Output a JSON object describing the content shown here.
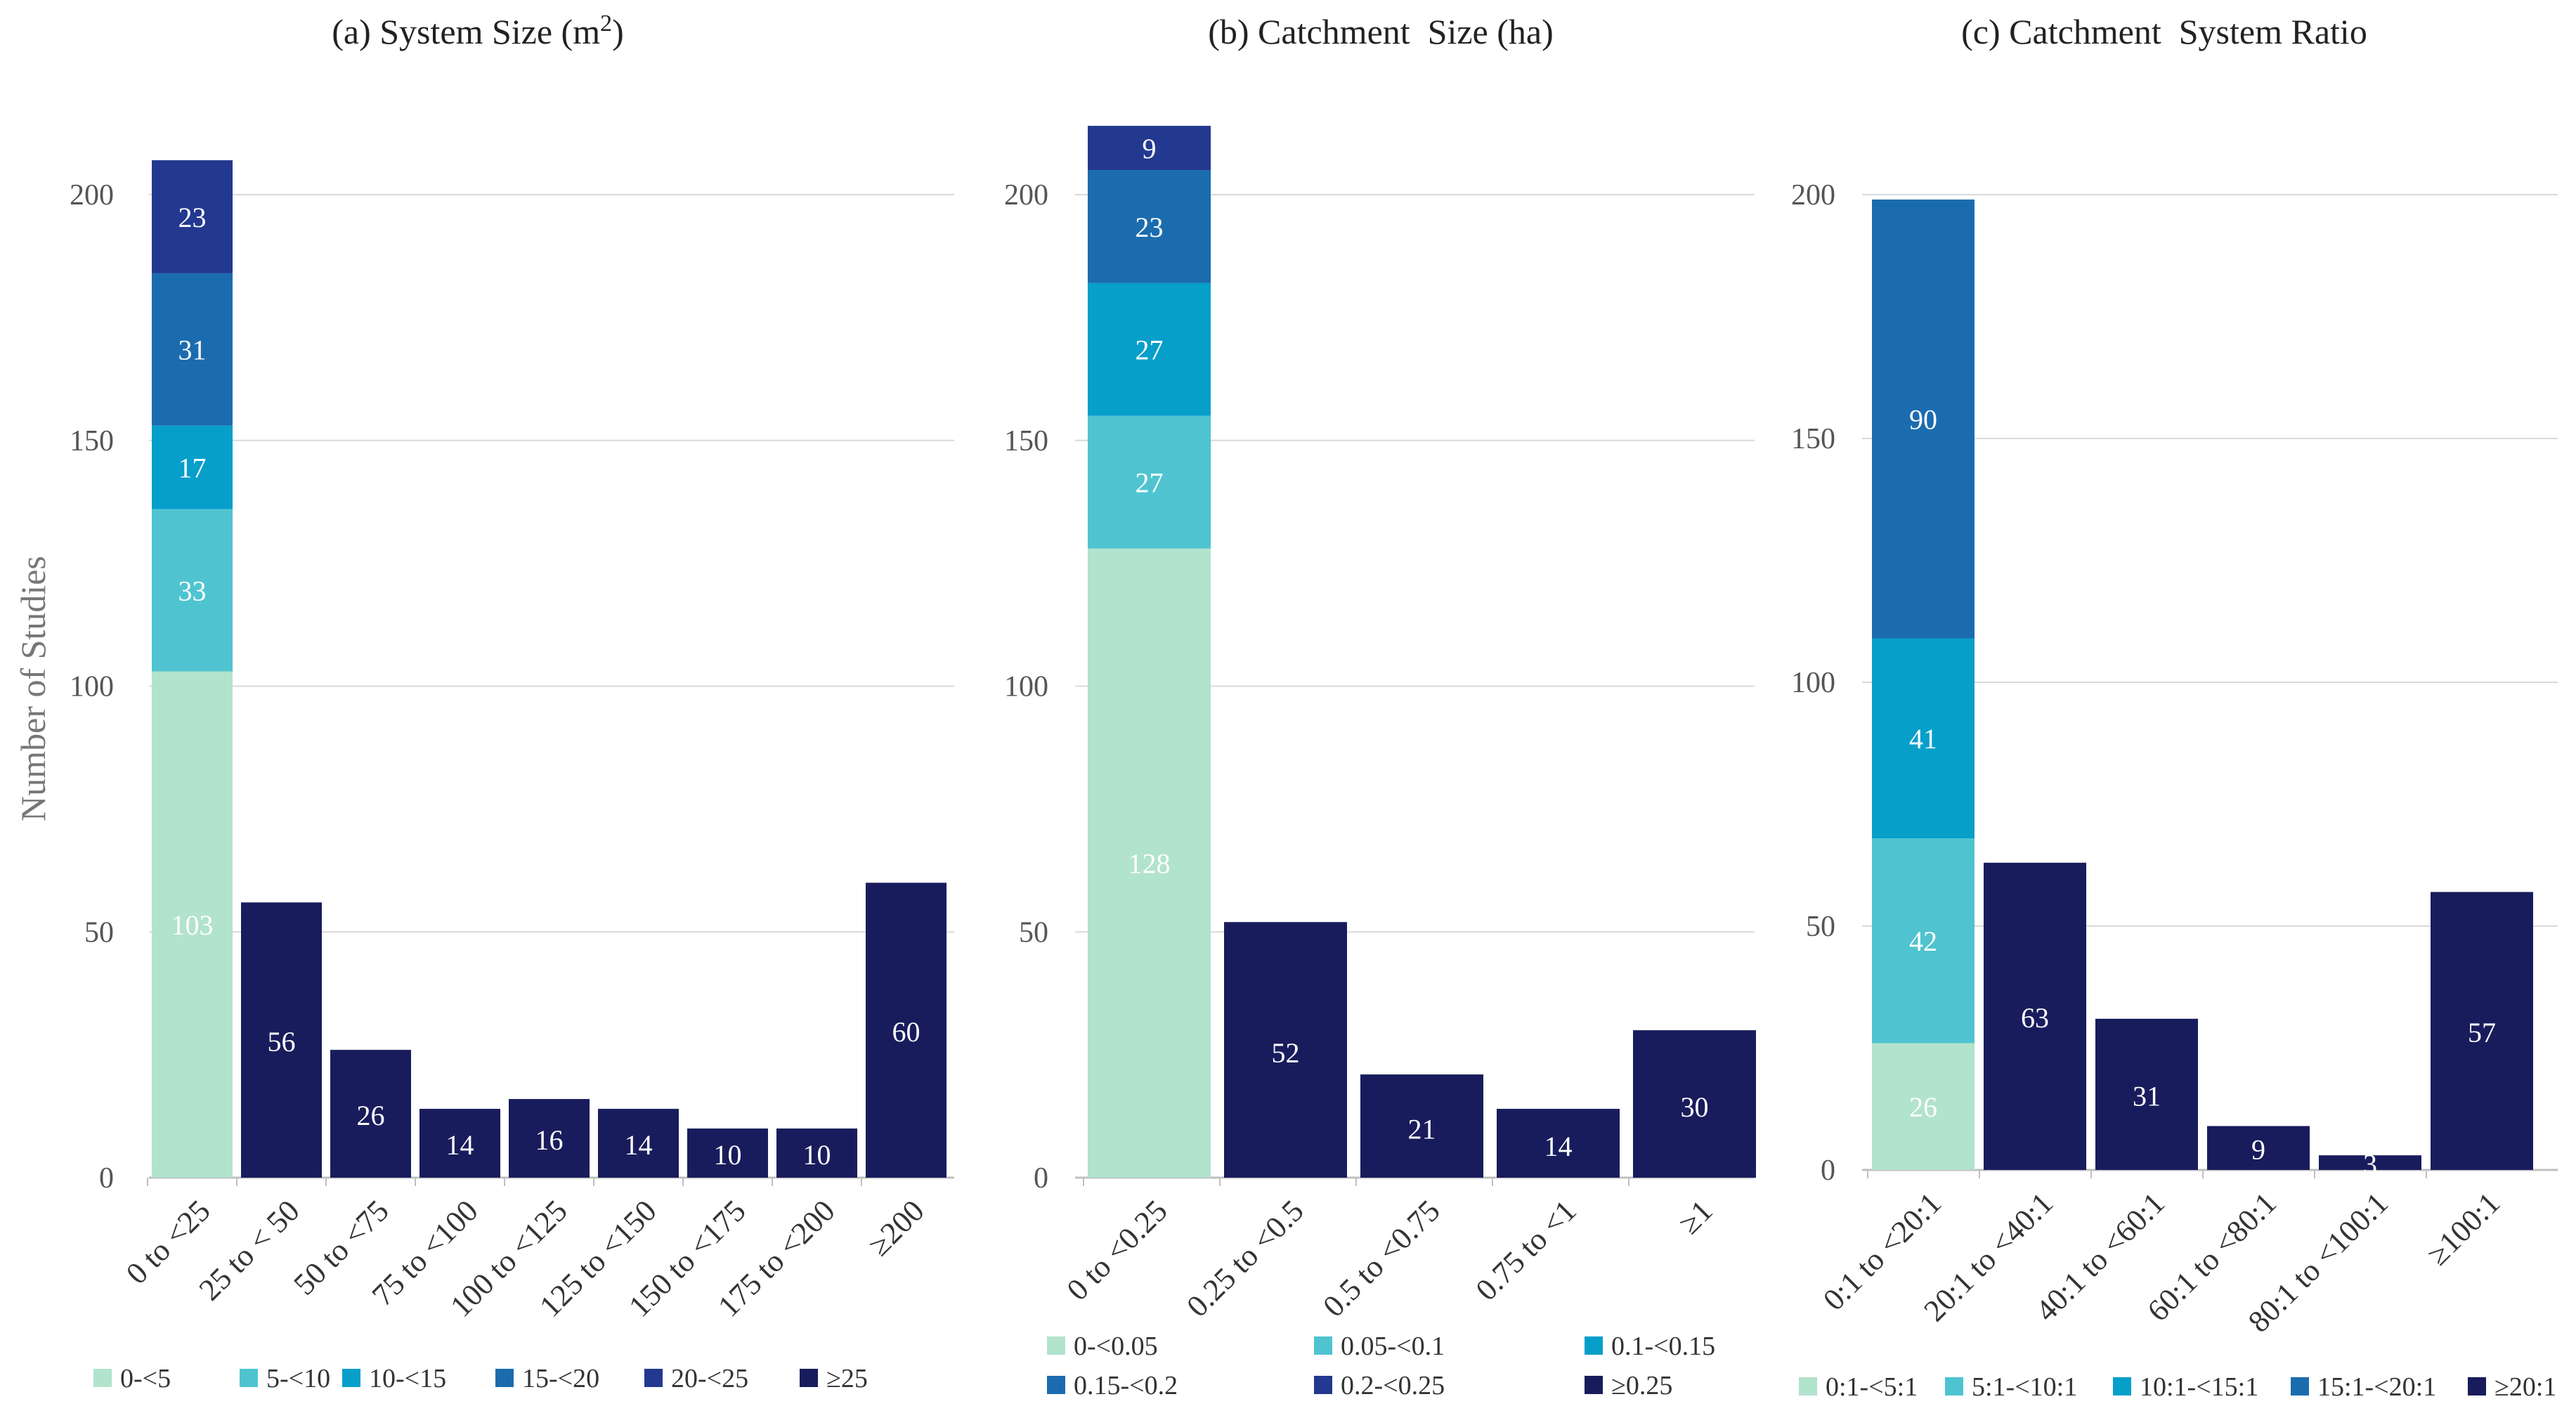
{
  "chart_data": [
    {
      "type": "bar",
      "stacked": true,
      "title": "(a) System Size (m",
      "title_sup": "2",
      "title_end": ")",
      "ylabel": "Number of Studies",
      "ylim": [
        0,
        200
      ],
      "yticks": [
        0,
        50,
        100,
        150,
        200
      ],
      "ymax_data": 207,
      "grid": true,
      "categories": [
        "0 to <25",
        "25 to < 50",
        "50 to <75",
        "75 to <100",
        "100 to <125",
        "125 to <150",
        "150 to <175",
        "175 to <200",
        "≥200"
      ],
      "series": [
        {
          "name": "0-<5",
          "color": "#b2e3cc",
          "label_color": "#ffffff",
          "values": [
            103,
            null,
            null,
            null,
            null,
            null,
            null,
            null,
            null
          ]
        },
        {
          "name": "5-<10",
          "color": "#4fc4d0",
          "label_color": "#ffffff",
          "values": [
            33,
            null,
            null,
            null,
            null,
            null,
            null,
            null,
            null
          ]
        },
        {
          "name": "10-<15",
          "color": "#059fca",
          "label_color": "#ffffff",
          "values": [
            17,
            null,
            null,
            null,
            null,
            null,
            null,
            null,
            null
          ]
        },
        {
          "name": "15-<20",
          "color": "#1b6caf",
          "label_color": "#ffffff",
          "values": [
            31,
            null,
            null,
            null,
            null,
            null,
            null,
            null,
            null
          ]
        },
        {
          "name": "20-<25",
          "color": "#23398f",
          "label_color": "#ffffff",
          "values": [
            23,
            null,
            null,
            null,
            null,
            null,
            null,
            null,
            null
          ]
        },
        {
          "name": "≥25",
          "color": "#191c5c",
          "label_color": "#ffffff",
          "values": [
            null,
            56,
            26,
            14,
            16,
            14,
            10,
            10,
            60
          ]
        }
      ],
      "legend": {
        "placement": "bottom",
        "columns": 6
      }
    },
    {
      "type": "bar",
      "stacked": true,
      "title": "(b) Catchment  Size (ha)",
      "ylim": [
        0,
        200
      ],
      "yticks": [
        0,
        50,
        100,
        150,
        200
      ],
      "ymax_data": 214,
      "grid": true,
      "categories": [
        "0 to <0.25",
        "0.25 to <0.5",
        "0.5 to <0.75",
        "0.75 to <1",
        "≥1"
      ],
      "series": [
        {
          "name": "0-<0.05",
          "color": "#b2e3cc",
          "label_color": "#ffffff",
          "values": [
            128,
            null,
            null,
            null,
            null
          ]
        },
        {
          "name": "0.05-<0.1",
          "color": "#4fc4d0",
          "label_color": "#ffffff",
          "values": [
            27,
            null,
            null,
            null,
            null
          ]
        },
        {
          "name": "0.1-<0.15",
          "color": "#059fca",
          "label_color": "#ffffff",
          "values": [
            27,
            null,
            null,
            null,
            null
          ]
        },
        {
          "name": "0.15-<0.2",
          "color": "#1b6caf",
          "label_color": "#ffffff",
          "values": [
            23,
            null,
            null,
            null,
            null
          ]
        },
        {
          "name": "0.2-<0.25",
          "color": "#23398f",
          "label_color": "#ffffff",
          "values": [
            9,
            null,
            null,
            null,
            null
          ]
        },
        {
          "name": "≥0.25",
          "color": "#191c5c",
          "label_color": "#ffffff",
          "values": [
            null,
            52,
            21,
            14,
            30
          ]
        }
      ],
      "legend": {
        "placement": "bottom",
        "columns": 3
      }
    },
    {
      "type": "bar",
      "stacked": true,
      "title": "(c) Catchment  System Ratio",
      "ylim": [
        0,
        200
      ],
      "yticks": [
        0,
        50,
        100,
        150,
        200
      ],
      "ymax_data": 200,
      "grid": true,
      "categories": [
        "0:1 to <20:1",
        "20:1 to <40:1",
        "40:1 to <60:1",
        "60:1 to <80:1",
        "80:1 to <100:1",
        "≥100:1"
      ],
      "series": [
        {
          "name": "0:1-<5:1",
          "color": "#b2e3cc",
          "label_color": "#ffffff",
          "values": [
            26,
            null,
            null,
            null,
            null,
            null
          ]
        },
        {
          "name": "5:1-<10:1",
          "color": "#4fc4d0",
          "label_color": "#ffffff",
          "values": [
            42,
            null,
            null,
            null,
            null,
            null
          ]
        },
        {
          "name": "10:1-<15:1",
          "color": "#059fca",
          "label_color": "#ffffff",
          "values": [
            41,
            null,
            null,
            null,
            null,
            null
          ]
        },
        {
          "name": "15:1-<20:1",
          "color": "#1b6caf",
          "label_color": "#ffffff",
          "values": [
            90,
            null,
            null,
            null,
            null,
            null
          ]
        },
        {
          "name": "≥20:1",
          "color": "#191c5c",
          "label_color": "#ffffff",
          "values": [
            null,
            63,
            31,
            9,
            3,
            57
          ]
        }
      ],
      "legend": {
        "placement": "bottom",
        "columns": 5
      }
    }
  ]
}
